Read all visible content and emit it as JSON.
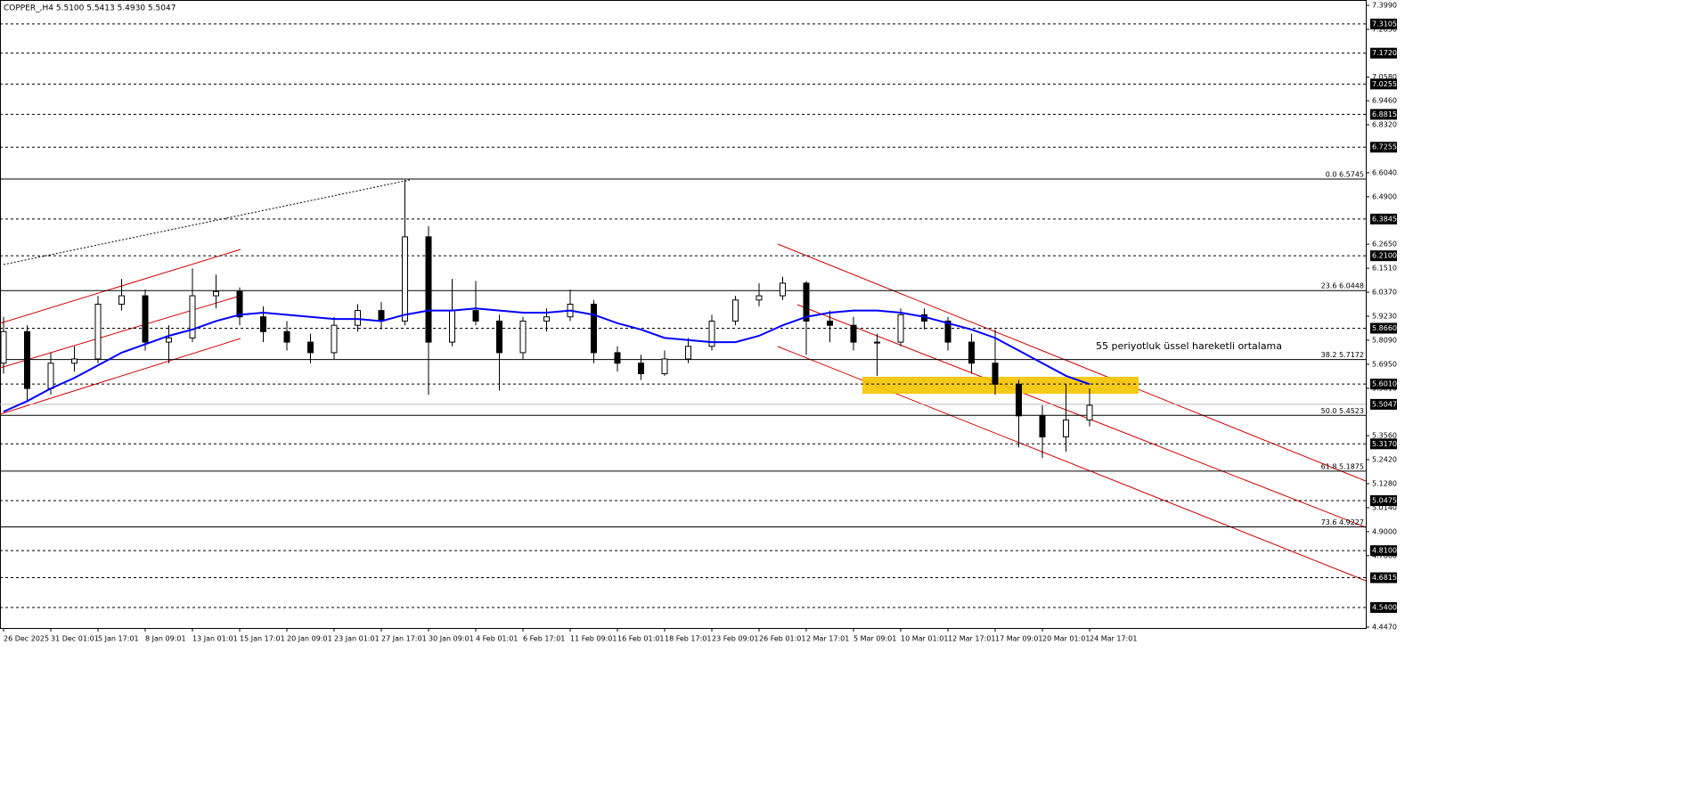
{
  "chart_data": {
    "type": "candlestick",
    "title": "COPPER_,H4  5.5100 5.5413 5.4930 5.5047",
    "annotation": "55 periyotluk üssel hareketli ortalama",
    "categories": [
      "26 Dec 2025",
      null,
      "31 Dec 01:01",
      null,
      "5 Jan 17:01",
      null,
      "8 Jan 09:01",
      null,
      "13 Jan 01:01",
      null,
      "15 Jan 17:01",
      null,
      "20 Jan 09:01",
      null,
      "23 Jan 01:01",
      null,
      "27 Jan 17:01",
      null,
      "30 Jan 09:01",
      null,
      "4 Feb 01:01",
      null,
      "6 Feb 17:01",
      null,
      "11 Feb 09:01",
      null,
      "16 Feb 01:01",
      null,
      "18 Feb 17:01",
      null,
      "23 Feb 09:01",
      null,
      "26 Feb 01:01",
      null,
      "2 Mar 17:01",
      null,
      "5 Mar 09:01",
      null,
      "10 Mar 01:01",
      null,
      "12 Mar 17:01",
      null,
      "17 Mar 09:01",
      null,
      "20 Mar 01:01",
      null,
      "24 Mar 17:01"
    ],
    "open": [
      5.7,
      5.85,
      5.58,
      5.7,
      5.72,
      5.98,
      6.02,
      5.8,
      5.82,
      6.02,
      6.04,
      5.92,
      5.85,
      5.8,
      5.75,
      5.88,
      5.95,
      5.9,
      6.3,
      5.8,
      5.95,
      5.9,
      5.75,
      5.9,
      5.92,
      5.98,
      5.75,
      5.7,
      5.65,
      5.72,
      5.78,
      5.9,
      6.0,
      6.02,
      6.08,
      5.9,
      5.88,
      5.8,
      5.8,
      5.93,
      5.9,
      5.8,
      5.7,
      5.6,
      5.45,
      5.35,
      5.43
    ],
    "high": [
      5.92,
      5.88,
      5.75,
      5.78,
      6.02,
      6.1,
      6.05,
      5.88,
      6.15,
      6.12,
      6.06,
      5.97,
      5.9,
      5.84,
      5.92,
      5.98,
      5.99,
      6.57,
      6.35,
      6.1,
      6.09,
      5.93,
      5.92,
      5.96,
      6.05,
      6.0,
      5.78,
      5.74,
      5.76,
      5.82,
      5.93,
      6.02,
      6.08,
      6.11,
      6.09,
      5.95,
      5.92,
      5.84,
      5.96,
      5.96,
      5.92,
      5.84,
      5.86,
      5.62,
      5.5,
      5.6,
      5.58
    ],
    "low": [
      5.65,
      5.52,
      5.55,
      5.66,
      5.7,
      5.95,
      5.76,
      5.7,
      5.8,
      5.96,
      5.88,
      5.8,
      5.76,
      5.7,
      5.72,
      5.85,
      5.86,
      5.88,
      5.55,
      5.78,
      5.88,
      5.57,
      5.72,
      5.85,
      5.9,
      5.7,
      5.66,
      5.62,
      5.64,
      5.7,
      5.76,
      5.88,
      5.97,
      6.0,
      5.74,
      5.8,
      5.76,
      5.64,
      5.78,
      5.86,
      5.76,
      5.65,
      5.55,
      5.3,
      5.25,
      5.28,
      5.4
    ],
    "close": [
      5.85,
      5.58,
      5.7,
      5.72,
      5.98,
      6.02,
      5.8,
      5.82,
      6.02,
      6.04,
      5.92,
      5.85,
      5.8,
      5.75,
      5.88,
      5.95,
      5.9,
      6.3,
      5.8,
      5.95,
      5.9,
      5.75,
      5.9,
      5.92,
      5.98,
      5.75,
      5.7,
      5.65,
      5.72,
      5.78,
      5.9,
      6.0,
      6.02,
      6.08,
      5.9,
      5.88,
      5.8,
      5.8,
      5.93,
      5.9,
      5.8,
      5.7,
      5.6,
      5.45,
      5.35,
      5.43,
      5.5
    ],
    "ema": [
      5.47,
      5.52,
      5.58,
      5.63,
      5.69,
      5.75,
      5.79,
      5.83,
      5.86,
      5.9,
      5.93,
      5.94,
      5.93,
      5.92,
      5.91,
      5.91,
      5.9,
      5.93,
      5.95,
      5.95,
      5.96,
      5.95,
      5.94,
      5.94,
      5.95,
      5.93,
      5.89,
      5.86,
      5.82,
      5.81,
      5.8,
      5.8,
      5.83,
      5.88,
      5.92,
      5.94,
      5.95,
      5.95,
      5.94,
      5.92,
      5.89,
      5.86,
      5.82,
      5.76,
      5.7,
      5.64,
      5.6
    ],
    "ema_color": "#0000ff",
    "annotation_color": "#0000ff",
    "ylim": [
      4.447,
      7.399
    ],
    "yticks": [
      {
        "value": 7.399,
        "label": "7.3990"
      },
      {
        "value": 7.285,
        "label": "7.2850"
      },
      {
        "value": 7.058,
        "label": "7.0580"
      },
      {
        "value": 6.946,
        "label": "6.9460"
      },
      {
        "value": 6.832,
        "label": "6.8320"
      },
      {
        "value": 6.604,
        "label": "6.6040"
      },
      {
        "value": 6.49,
        "label": "6.4900"
      },
      {
        "value": 6.265,
        "label": "6.2650"
      },
      {
        "value": 6.151,
        "label": "6.1510"
      },
      {
        "value": 6.037,
        "label": "6.0370"
      },
      {
        "value": 5.923,
        "label": "5.9230"
      },
      {
        "value": 5.809,
        "label": "5.8090"
      },
      {
        "value": 5.695,
        "label": "5.6950"
      },
      {
        "value": 5.581,
        "label": "5.5810"
      },
      {
        "value": 5.356,
        "label": "5.3560"
      },
      {
        "value": 5.242,
        "label": "5.2420"
      },
      {
        "value": 5.128,
        "label": "5.1280"
      },
      {
        "value": 5.014,
        "label": "5.0140"
      },
      {
        "value": 4.9,
        "label": "4.9000"
      },
      {
        "value": 4.786,
        "label": "4.7860"
      },
      {
        "value": 4.447,
        "label": "4.4470"
      }
    ],
    "levels": [
      {
        "value": 7.3105,
        "label": "7.3105"
      },
      {
        "value": 7.172,
        "label": "7.1720"
      },
      {
        "value": 7.0255,
        "label": "7.0255"
      },
      {
        "value": 6.8815,
        "label": "6.8815"
      },
      {
        "value": 6.7255,
        "label": "6.7255"
      },
      {
        "value": 6.3845,
        "label": "6.3845"
      },
      {
        "value": 6.21,
        "label": "6.2100"
      },
      {
        "value": 5.866,
        "label": "5.8660"
      },
      {
        "value": 5.601,
        "label": "5.6010"
      },
      {
        "value": 5.317,
        "label": "5.3170"
      },
      {
        "value": 5.0475,
        "label": "5.0475"
      },
      {
        "value": 4.81,
        "label": "4.8100"
      },
      {
        "value": 4.6815,
        "label": "4.6815"
      },
      {
        "value": 4.54,
        "label": "4.5400"
      }
    ],
    "fib": [
      {
        "value": 6.5745,
        "label": "0.0 6.5745"
      },
      {
        "value": 6.0448,
        "label": "23.6 6.0448"
      },
      {
        "value": 5.7172,
        "label": "38.2 5.7172"
      },
      {
        "value": 5.4523,
        "label": "50.0 5.4523"
      },
      {
        "value": 5.1875,
        "label": "61.8 5.1875"
      },
      {
        "value": 4.9227,
        "label": "73.6 4.9227"
      }
    ],
    "current_price": {
      "value": 5.5047,
      "label": "5.5047"
    }
  }
}
